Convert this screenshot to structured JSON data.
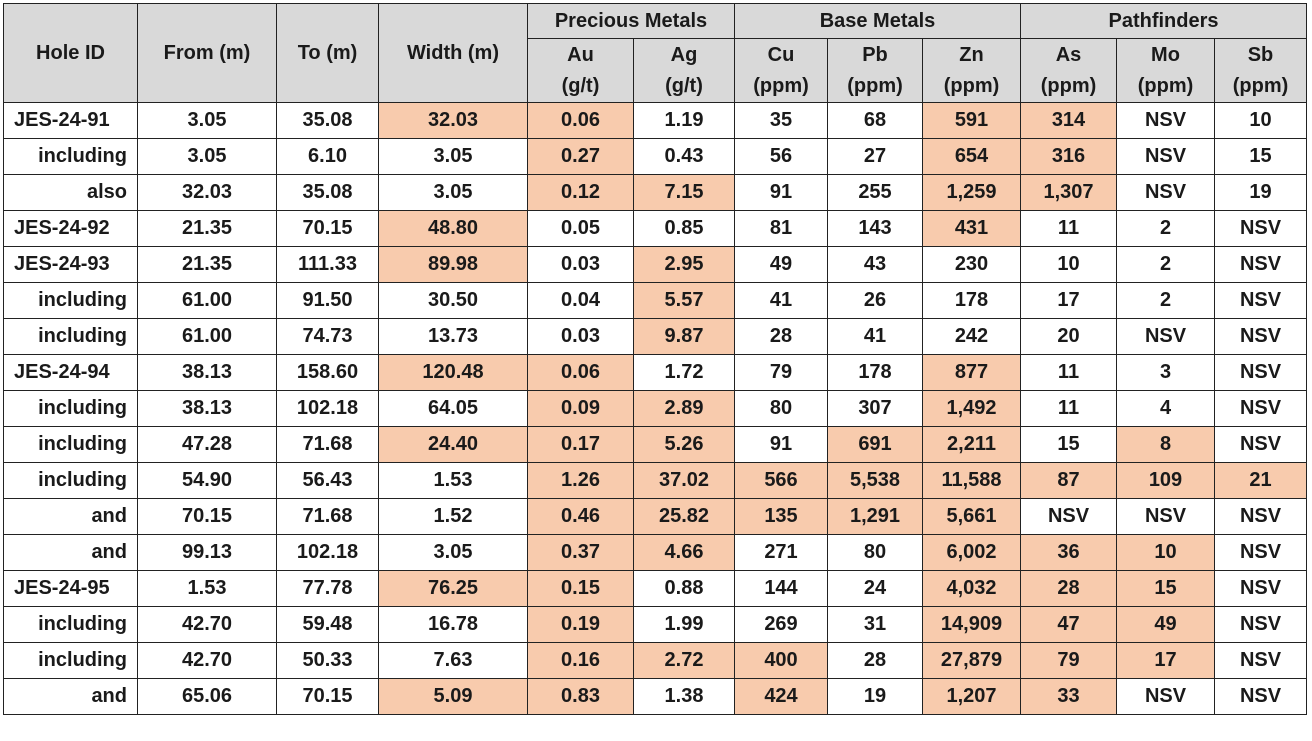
{
  "table": {
    "headers": {
      "hole_id": "Hole ID",
      "from": "From (m)",
      "to": "To (m)",
      "width": "Width (m)",
      "groups": [
        "Precious Metals",
        "Base Metals",
        "Pathfinders"
      ],
      "elements": [
        "Au",
        "Ag",
        "Cu",
        "Pb",
        "Zn",
        "As",
        "Mo",
        "Sb"
      ],
      "units": [
        "(g/t)",
        "(g/t)",
        "(ppm)",
        "(ppm)",
        "(ppm)",
        "(ppm)",
        "(ppm)",
        "(ppm)"
      ]
    },
    "highlight_color": "#f8cbad",
    "header_color": "#d9d9d9",
    "rows": [
      {
        "hole": "JES-24-91",
        "main": true,
        "cells": [
          "3.05",
          "35.08",
          "32.03",
          "0.06",
          "1.19",
          "35",
          "68",
          "591",
          "314",
          "NSV",
          "10"
        ],
        "hl": [
          2,
          3,
          7,
          8
        ]
      },
      {
        "hole": "including",
        "main": false,
        "cells": [
          "3.05",
          "6.10",
          "3.05",
          "0.27",
          "0.43",
          "56",
          "27",
          "654",
          "316",
          "NSV",
          "15"
        ],
        "hl": [
          3,
          7,
          8
        ]
      },
      {
        "hole": "also",
        "main": false,
        "cells": [
          "32.03",
          "35.08",
          "3.05",
          "0.12",
          "7.15",
          "91",
          "255",
          "1,259",
          "1,307",
          "NSV",
          "19"
        ],
        "hl": [
          3,
          4,
          7,
          8
        ]
      },
      {
        "hole": "JES-24-92",
        "main": true,
        "cells": [
          "21.35",
          "70.15",
          "48.80",
          "0.05",
          "0.85",
          "81",
          "143",
          "431",
          "11",
          "2",
          "NSV"
        ],
        "hl": [
          2,
          7
        ]
      },
      {
        "hole": "JES-24-93",
        "main": true,
        "cells": [
          "21.35",
          "111.33",
          "89.98",
          "0.03",
          "2.95",
          "49",
          "43",
          "230",
          "10",
          "2",
          "NSV"
        ],
        "hl": [
          2,
          4
        ]
      },
      {
        "hole": "including",
        "main": false,
        "cells": [
          "61.00",
          "91.50",
          "30.50",
          "0.04",
          "5.57",
          "41",
          "26",
          "178",
          "17",
          "2",
          "NSV"
        ],
        "hl": [
          4
        ]
      },
      {
        "hole": "including",
        "main": false,
        "cells": [
          "61.00",
          "74.73",
          "13.73",
          "0.03",
          "9.87",
          "28",
          "41",
          "242",
          "20",
          "NSV",
          "NSV"
        ],
        "hl": [
          4
        ]
      },
      {
        "hole": "JES-24-94",
        "main": true,
        "cells": [
          "38.13",
          "158.60",
          "120.48",
          "0.06",
          "1.72",
          "79",
          "178",
          "877",
          "11",
          "3",
          "NSV"
        ],
        "hl": [
          2,
          3,
          7
        ]
      },
      {
        "hole": "including",
        "main": false,
        "cells": [
          "38.13",
          "102.18",
          "64.05",
          "0.09",
          "2.89",
          "80",
          "307",
          "1,492",
          "11",
          "4",
          "NSV"
        ],
        "hl": [
          3,
          4,
          7
        ]
      },
      {
        "hole": "including",
        "main": false,
        "cells": [
          "47.28",
          "71.68",
          "24.40",
          "0.17",
          "5.26",
          "91",
          "691",
          "2,211",
          "15",
          "8",
          "NSV"
        ],
        "hl": [
          2,
          3,
          4,
          6,
          7,
          9
        ]
      },
      {
        "hole": "including",
        "main": false,
        "cells": [
          "54.90",
          "56.43",
          "1.53",
          "1.26",
          "37.02",
          "566",
          "5,538",
          "11,588",
          "87",
          "109",
          "21"
        ],
        "hl": [
          3,
          4,
          5,
          6,
          7,
          8,
          9,
          10
        ]
      },
      {
        "hole": "and",
        "main": false,
        "cells": [
          "70.15",
          "71.68",
          "1.52",
          "0.46",
          "25.82",
          "135",
          "1,291",
          "5,661",
          "NSV",
          "NSV",
          "NSV"
        ],
        "hl": [
          3,
          4,
          5,
          6,
          7
        ]
      },
      {
        "hole": "and",
        "main": false,
        "cells": [
          "99.13",
          "102.18",
          "3.05",
          "0.37",
          "4.66",
          "271",
          "80",
          "6,002",
          "36",
          "10",
          "NSV"
        ],
        "hl": [
          3,
          4,
          7,
          8,
          9
        ]
      },
      {
        "hole": "JES-24-95",
        "main": true,
        "cells": [
          "1.53",
          "77.78",
          "76.25",
          "0.15",
          "0.88",
          "144",
          "24",
          "4,032",
          "28",
          "15",
          "NSV"
        ],
        "hl": [
          2,
          3,
          7,
          8,
          9
        ]
      },
      {
        "hole": "including",
        "main": false,
        "cells": [
          "42.70",
          "59.48",
          "16.78",
          "0.19",
          "1.99",
          "269",
          "31",
          "14,909",
          "47",
          "49",
          "NSV"
        ],
        "hl": [
          3,
          7,
          8,
          9
        ]
      },
      {
        "hole": "including",
        "main": false,
        "cells": [
          "42.70",
          "50.33",
          "7.63",
          "0.16",
          "2.72",
          "400",
          "28",
          "27,879",
          "79",
          "17",
          "NSV"
        ],
        "hl": [
          3,
          4,
          5,
          7,
          8,
          9
        ]
      },
      {
        "hole": "and",
        "main": false,
        "cells": [
          "65.06",
          "70.15",
          "5.09",
          "0.83",
          "1.38",
          "424",
          "19",
          "1,207",
          "33",
          "NSV",
          "NSV"
        ],
        "hl": [
          2,
          3,
          5,
          7,
          8
        ]
      }
    ]
  }
}
